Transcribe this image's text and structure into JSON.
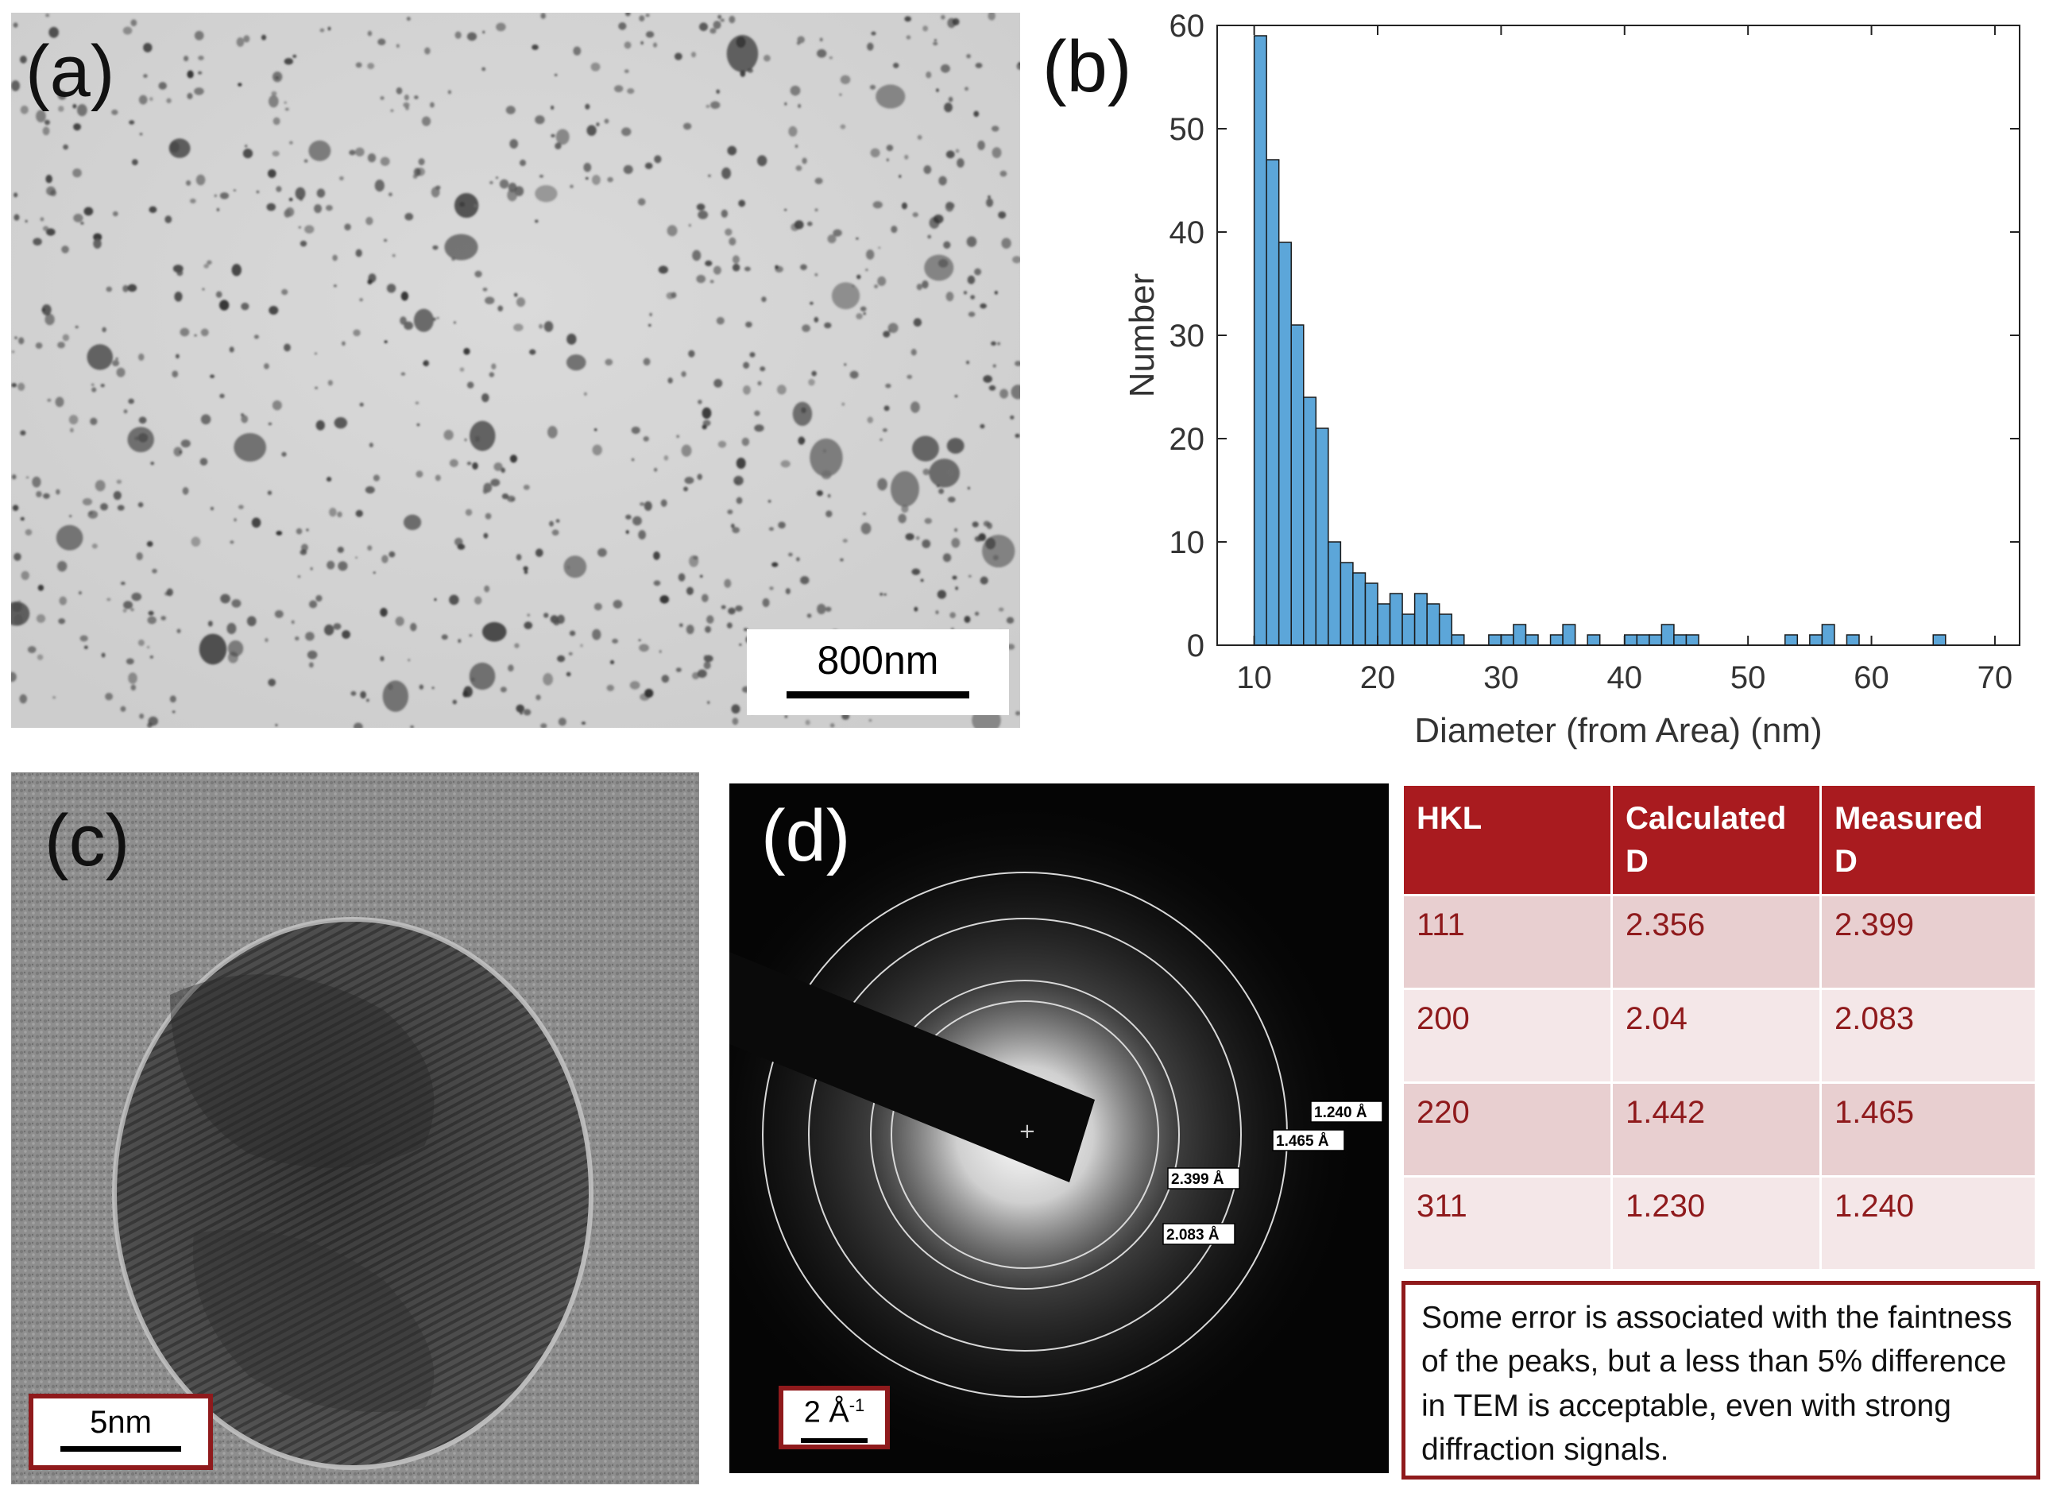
{
  "panel_a": {
    "label": "(a)",
    "scale_bar": "800nm"
  },
  "panel_b": {
    "label": "(b)"
  },
  "chart_data": {
    "type": "bar",
    "xlabel": "Diameter (from Area) (nm)",
    "ylabel": "Number",
    "xlim": [
      7,
      72
    ],
    "ylim": [
      0,
      60
    ],
    "xticks": [
      10,
      20,
      30,
      40,
      50,
      60,
      70
    ],
    "yticks": [
      0,
      10,
      20,
      30,
      40,
      50,
      60
    ],
    "bin_width": 1,
    "bin_starts": [
      10,
      11,
      12,
      13,
      14,
      15,
      16,
      17,
      18,
      19,
      20,
      21,
      22,
      23,
      24,
      25,
      26,
      27,
      28,
      29,
      30,
      31,
      32,
      33,
      34,
      35,
      36,
      37,
      38,
      39,
      40,
      41,
      42,
      43,
      44,
      45,
      46,
      47,
      48,
      49,
      50,
      51,
      52,
      53,
      54,
      55,
      56,
      57,
      58,
      59,
      60,
      61,
      62,
      63,
      64,
      65
    ],
    "values": [
      59,
      47,
      39,
      31,
      24,
      21,
      10,
      8,
      7,
      6,
      4,
      5,
      3,
      5,
      4,
      3,
      1,
      0,
      0,
      1,
      1,
      2,
      1,
      0,
      1,
      2,
      0,
      1,
      0,
      0,
      1,
      1,
      1,
      2,
      1,
      1,
      0,
      0,
      0,
      0,
      0,
      0,
      0,
      1,
      0,
      1,
      2,
      0,
      1,
      0,
      0,
      0,
      0,
      0,
      0,
      1
    ],
    "bar_color": "#5ca6d9",
    "grid": false
  },
  "panel_c": {
    "label": "(c)",
    "scale_bar": "5nm"
  },
  "panel_d": {
    "label": "(d)",
    "scale_bar": "2 Å",
    "scale_bar_sup": "-1",
    "ring_labels": [
      "1.240 Å",
      "1.465 Å",
      "2.399 Å",
      "2.083 Å"
    ]
  },
  "table": {
    "headers": [
      [
        "HKL",
        ""
      ],
      [
        "Calculated",
        "D"
      ],
      [
        "Measured",
        "D"
      ]
    ],
    "rows": [
      [
        "111",
        "2.356",
        "2.399"
      ],
      [
        "200",
        "2.04",
        "2.083"
      ],
      [
        "220",
        "1.442",
        "1.465"
      ],
      [
        "311",
        "1.230",
        "1.240"
      ]
    ]
  },
  "note": "Some error is associated with the faintness of the peaks, but a less than 5% difference in TEM is acceptable, even with strong diffraction signals.",
  "colors": {
    "accent_red": "#a91b1f",
    "bar_blue": "#5ca6d9"
  }
}
